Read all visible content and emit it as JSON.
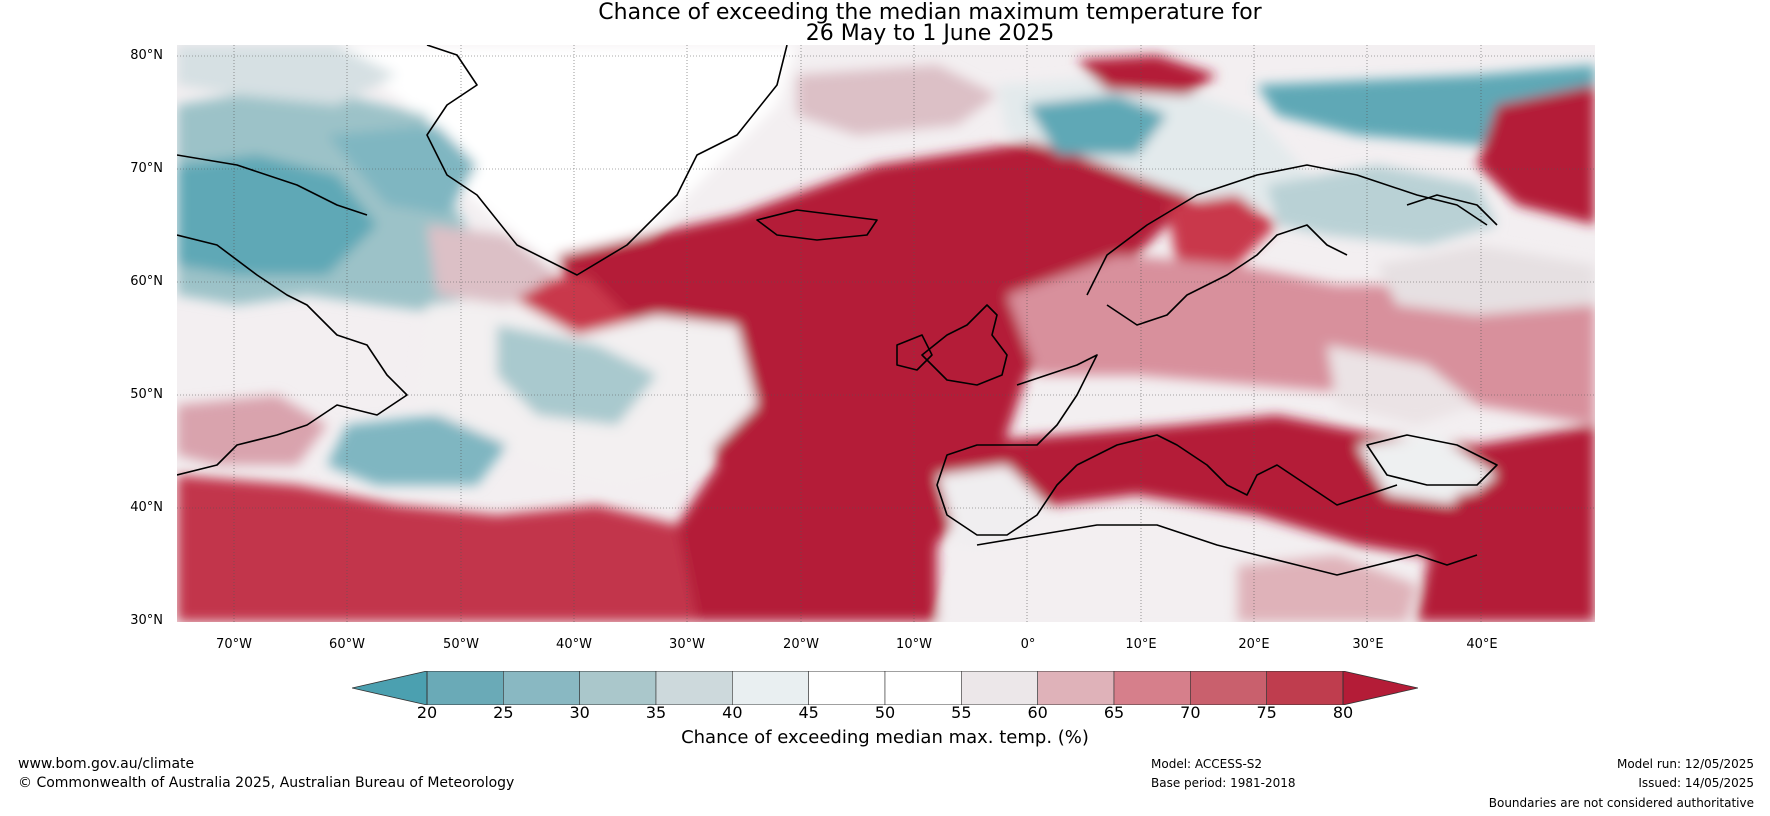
{
  "title": {
    "line1": "Chance of exceeding the median maximum temperature for",
    "line2": "26 May to 1 June 2025"
  },
  "map": {
    "lat_labels": [
      "80°N",
      "70°N",
      "60°N",
      "50°N",
      "40°N",
      "30°N"
    ],
    "lon_labels": [
      "70°W",
      "60°W",
      "50°W",
      "40°W",
      "30°W",
      "20°W",
      "10°W",
      "0°",
      "10°E",
      "20°E",
      "30°E",
      "40°E"
    ],
    "extent": {
      "lon_min": -75,
      "lon_max": 50,
      "lat_min": 30,
      "lat_max": 81
    }
  },
  "colorbar": {
    "ticks": [
      "20",
      "25",
      "30",
      "35",
      "40",
      "45",
      "50",
      "55",
      "60",
      "65",
      "70",
      "75",
      "80"
    ],
    "colors": [
      "#4ba0b0",
      "#6aaab7",
      "#89b8c2",
      "#aac7cb",
      "#cdd9dc",
      "#e9eff1",
      "#ffffff",
      "#ffffff",
      "#ece7e9",
      "#dfb2b9",
      "#d67f8b",
      "#c9606d",
      "#bf3d4e",
      "#b41c37"
    ],
    "label": "Chance of exceeding median max. temp. (%)"
  },
  "footer": {
    "website": "www.bom.gov.au/climate",
    "copyright": "© Commonwealth of Australia 2025, Australian Bureau of Meteorology",
    "model": "Model: ACCESS-S2",
    "base_period": "Base period: 1981-2018",
    "model_run": "Model run: 12/05/2025",
    "issued": "Issued: 14/05/2025",
    "disclaimer": "Boundaries are not considered authoritative"
  }
}
